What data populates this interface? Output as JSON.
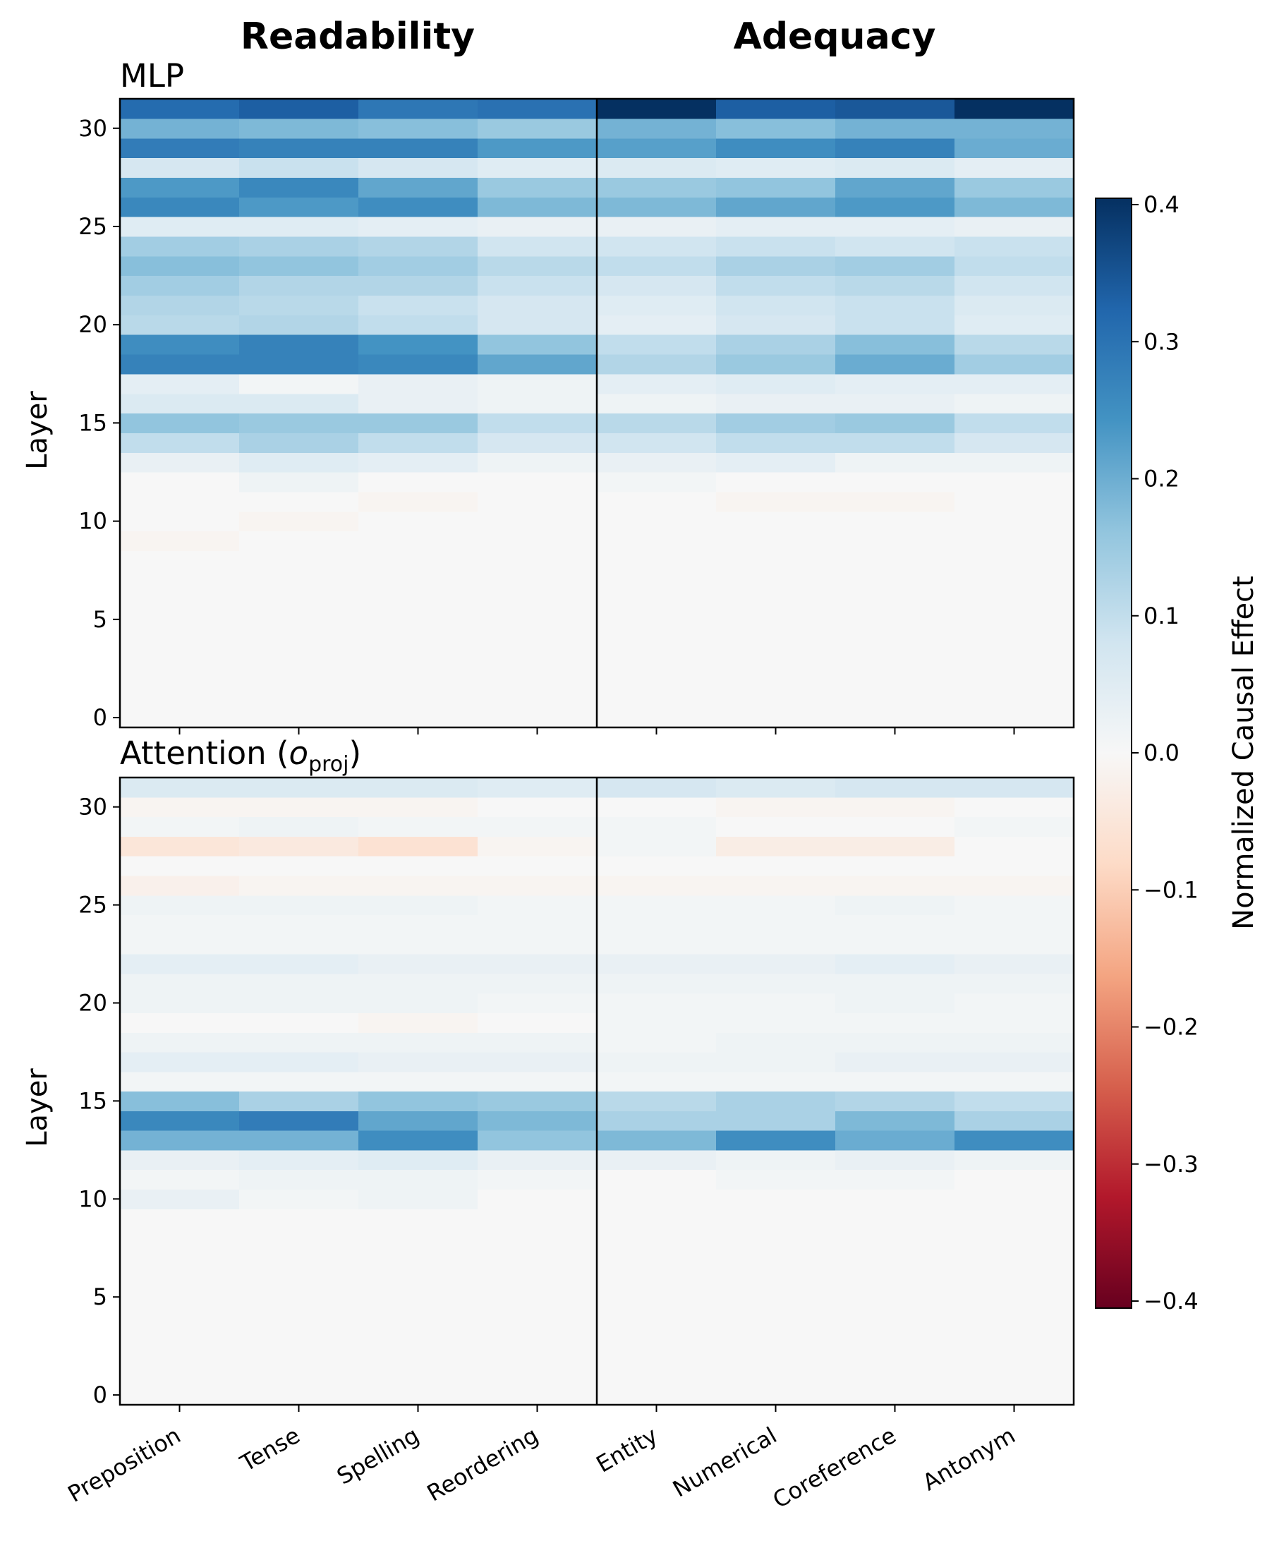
{
  "header": {
    "left_title": "Readability",
    "right_title": "Adequacy"
  },
  "panels": {
    "mlp_title": "MLP",
    "attn_title_main": "Attention (",
    "attn_title_var": "o",
    "attn_title_sub": "proj",
    "attn_title_close": ")",
    "ylabel": "Layer"
  },
  "colorbar": {
    "label": "Normalized Causal Effect",
    "ticks": [
      "0.4",
      "0.3",
      "0.2",
      "0.1",
      "0.0",
      "−0.1",
      "−0.2",
      "−0.3",
      "−0.4"
    ]
  },
  "chart_data": [
    {
      "type": "heatmap",
      "title": "MLP",
      "ylabel": "Layer",
      "colorbar_label": "Normalized Causal Effect",
      "vlim": [
        -0.4,
        0.4
      ],
      "colormap": "RdBu",
      "group_labels": [
        "Readability",
        "Adequacy"
      ],
      "categories": [
        "Preposition",
        "Tense",
        "Spelling",
        "Reordering",
        "Entity",
        "Numerical",
        "Coreference",
        "Antonym"
      ],
      "ytick_labels": [
        "0",
        "5",
        "10",
        "15",
        "20",
        "25",
        "30"
      ],
      "layers_range": [
        0,
        31
      ],
      "values_by_layer": {
        "31": [
          0.31,
          0.33,
          0.29,
          0.3,
          0.4,
          0.33,
          0.34,
          0.4
        ],
        "30": [
          0.19,
          0.18,
          0.17,
          0.15,
          0.19,
          0.17,
          0.19,
          0.19
        ],
        "29": [
          0.28,
          0.27,
          0.27,
          0.23,
          0.22,
          0.25,
          0.27,
          0.2
        ],
        "28": [
          0.07,
          0.09,
          0.07,
          0.05,
          0.06,
          0.05,
          0.06,
          0.04
        ],
        "27": [
          0.23,
          0.26,
          0.21,
          0.15,
          0.15,
          0.16,
          0.21,
          0.15
        ],
        "26": [
          0.26,
          0.23,
          0.25,
          0.18,
          0.18,
          0.21,
          0.23,
          0.18
        ],
        "25": [
          0.05,
          0.05,
          0.04,
          0.03,
          0.03,
          0.04,
          0.04,
          0.03
        ],
        "24": [
          0.14,
          0.13,
          0.12,
          0.08,
          0.08,
          0.09,
          0.08,
          0.09
        ],
        "23": [
          0.17,
          0.16,
          0.14,
          0.11,
          0.1,
          0.13,
          0.14,
          0.1
        ],
        "22": [
          0.14,
          0.12,
          0.12,
          0.09,
          0.07,
          0.1,
          0.11,
          0.08
        ],
        "21": [
          0.12,
          0.11,
          0.09,
          0.07,
          0.05,
          0.08,
          0.09,
          0.06
        ],
        "20": [
          0.11,
          0.12,
          0.1,
          0.07,
          0.04,
          0.07,
          0.09,
          0.05
        ],
        "19": [
          0.25,
          0.27,
          0.24,
          0.16,
          0.1,
          0.13,
          0.17,
          0.11
        ],
        "18": [
          0.27,
          0.27,
          0.26,
          0.21,
          0.12,
          0.15,
          0.2,
          0.14
        ],
        "17": [
          0.04,
          0.01,
          0.03,
          0.02,
          0.04,
          0.05,
          0.04,
          0.04
        ],
        "16": [
          0.06,
          0.06,
          0.03,
          0.02,
          0.02,
          0.03,
          0.03,
          0.02
        ],
        "15": [
          0.16,
          0.15,
          0.15,
          0.1,
          0.11,
          0.14,
          0.15,
          0.1
        ],
        "14": [
          0.1,
          0.13,
          0.1,
          0.07,
          0.08,
          0.1,
          0.1,
          0.07
        ],
        "13": [
          0.03,
          0.05,
          0.04,
          0.02,
          0.03,
          0.04,
          0.02,
          0.02
        ],
        "12": [
          0.0,
          0.02,
          0.0,
          0.0,
          0.01,
          0.0,
          0.0,
          0.0
        ],
        "11": [
          0.0,
          0.0,
          -0.01,
          0.0,
          0.0,
          -0.01,
          -0.01,
          0.0
        ],
        "10": [
          0.0,
          -0.01,
          0.0,
          0.0,
          0.0,
          0.0,
          0.0,
          0.0
        ],
        "9": [
          -0.01,
          0.0,
          0.0,
          0.0,
          0.0,
          0.0,
          0.0,
          0.0
        ],
        "0-8": [
          0.0,
          0.0,
          0.0,
          0.0,
          0.0,
          0.0,
          0.0,
          0.0
        ]
      }
    },
    {
      "type": "heatmap",
      "title": "Attention (o_proj)",
      "ylabel": "Layer",
      "colorbar_label": "Normalized Causal Effect",
      "vlim": [
        -0.4,
        0.4
      ],
      "colormap": "RdBu",
      "group_labels": [
        "Readability",
        "Adequacy"
      ],
      "categories": [
        "Preposition",
        "Tense",
        "Spelling",
        "Reordering",
        "Entity",
        "Numerical",
        "Coreference",
        "Antonym"
      ],
      "ytick_labels": [
        "0",
        "5",
        "10",
        "15",
        "20",
        "25",
        "30"
      ],
      "layers_range": [
        0,
        31
      ],
      "values_by_layer": {
        "31": [
          0.06,
          0.06,
          0.06,
          0.05,
          0.07,
          0.06,
          0.07,
          0.07
        ],
        "30": [
          -0.01,
          -0.01,
          -0.01,
          0.0,
          0.0,
          -0.01,
          -0.01,
          0.0
        ],
        "29": [
          0.01,
          0.02,
          0.01,
          0.01,
          0.01,
          0.0,
          0.0,
          0.01
        ],
        "28": [
          -0.05,
          -0.04,
          -0.06,
          -0.01,
          0.01,
          -0.03,
          -0.03,
          0.0
        ],
        "27": [
          0.0,
          0.0,
          0.0,
          0.0,
          0.0,
          0.0,
          0.0,
          0.0
        ],
        "26": [
          -0.02,
          -0.01,
          -0.01,
          -0.01,
          -0.01,
          -0.01,
          -0.01,
          -0.01
        ],
        "25": [
          0.02,
          0.02,
          0.02,
          0.01,
          0.01,
          0.01,
          0.02,
          0.01
        ],
        "24": [
          0.01,
          0.01,
          0.01,
          0.01,
          0.01,
          0.01,
          0.01,
          0.01
        ],
        "23": [
          0.01,
          0.01,
          0.01,
          0.01,
          0.01,
          0.01,
          0.01,
          0.01
        ],
        "22": [
          0.04,
          0.04,
          0.03,
          0.03,
          0.03,
          0.03,
          0.04,
          0.03
        ],
        "21": [
          0.02,
          0.02,
          0.02,
          0.02,
          0.02,
          0.02,
          0.02,
          0.02
        ],
        "20": [
          0.02,
          0.02,
          0.02,
          0.01,
          0.01,
          0.01,
          0.02,
          0.01
        ],
        "19": [
          0.0,
          0.0,
          -0.01,
          0.0,
          0.01,
          0.01,
          0.01,
          0.01
        ],
        "18": [
          0.02,
          0.02,
          0.02,
          0.02,
          0.01,
          0.02,
          0.02,
          0.02
        ],
        "17": [
          0.04,
          0.04,
          0.03,
          0.03,
          0.02,
          0.02,
          0.03,
          0.03
        ],
        "16": [
          0.01,
          0.01,
          0.01,
          0.01,
          0.01,
          0.01,
          0.01,
          0.01
        ],
        "15": [
          0.17,
          0.13,
          0.16,
          0.15,
          0.11,
          0.13,
          0.12,
          0.1
        ],
        "14": [
          0.26,
          0.28,
          0.21,
          0.18,
          0.13,
          0.13,
          0.18,
          0.13
        ],
        "13": [
          0.19,
          0.19,
          0.25,
          0.16,
          0.18,
          0.25,
          0.2,
          0.25
        ],
        "12": [
          0.03,
          0.04,
          0.05,
          0.03,
          0.03,
          0.02,
          0.03,
          0.02
        ],
        "11": [
          0.01,
          0.02,
          0.02,
          0.01,
          0.0,
          0.01,
          0.01,
          0.0
        ],
        "10": [
          0.03,
          0.01,
          0.02,
          0.0,
          0.0,
          0.0,
          0.0,
          0.0
        ],
        "0-9": [
          0.0,
          0.0,
          0.0,
          0.0,
          0.0,
          0.0,
          0.0,
          0.0
        ]
      }
    }
  ]
}
